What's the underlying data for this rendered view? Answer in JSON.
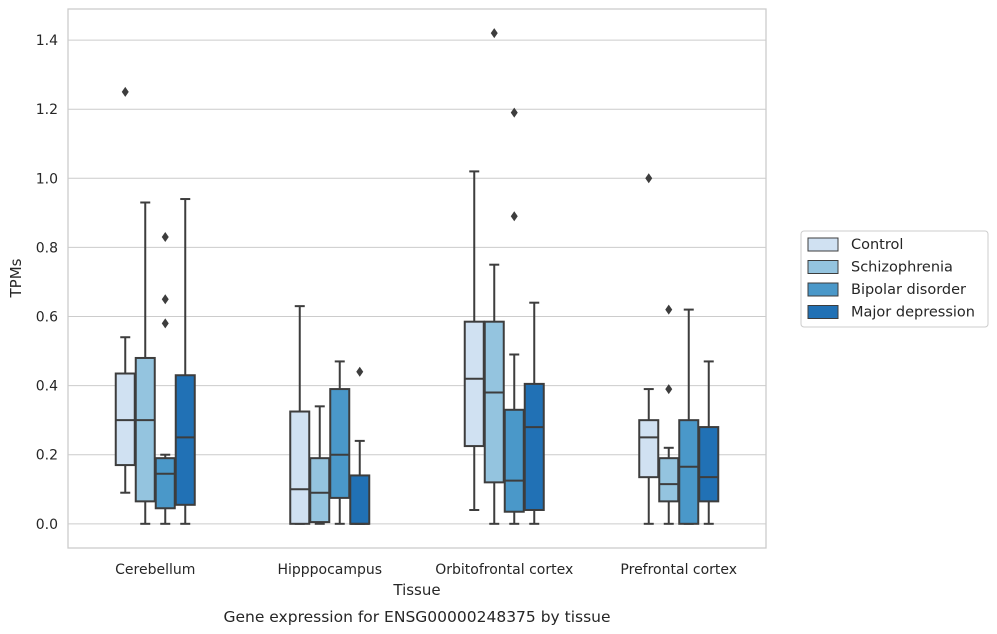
{
  "chart_data": {
    "type": "box",
    "caption": "Gene expression for ENSG00000248375 by tissue",
    "xlabel": "Tissue",
    "ylabel": "TPMs",
    "ylim": [
      -0.07,
      1.49
    ],
    "yticks": [
      "0.0",
      "0.2",
      "0.4",
      "0.6",
      "0.8",
      "1.0",
      "1.2",
      "1.4"
    ],
    "grid": true,
    "legend_position": "right",
    "categories": [
      "Cerebellum",
      "Hipppocampus",
      "Orbitofrontal cortex",
      "Prefrontal cortex"
    ],
    "series": [
      {
        "name": "Control",
        "color": "#d0e1f2",
        "boxes": [
          {
            "whisker_low": 0.09,
            "q1": 0.17,
            "median": 0.3,
            "q3": 0.435,
            "whisker_high": 0.54,
            "outliers": [
              1.25
            ]
          },
          {
            "whisker_low": 0.0,
            "q1": 0.0,
            "median": 0.1,
            "q3": 0.325,
            "whisker_high": 0.63,
            "outliers": []
          },
          {
            "whisker_low": 0.04,
            "q1": 0.225,
            "median": 0.42,
            "q3": 0.585,
            "whisker_high": 1.02,
            "outliers": []
          },
          {
            "whisker_low": 0.0,
            "q1": 0.135,
            "median": 0.25,
            "q3": 0.3,
            "whisker_high": 0.39,
            "outliers": [
              1.0
            ]
          }
        ]
      },
      {
        "name": "Schizophrenia",
        "color": "#94c4df",
        "boxes": [
          {
            "whisker_low": 0.0,
            "q1": 0.065,
            "median": 0.3,
            "q3": 0.48,
            "whisker_high": 0.93,
            "outliers": []
          },
          {
            "whisker_low": 0.0,
            "q1": 0.005,
            "median": 0.09,
            "q3": 0.19,
            "whisker_high": 0.34,
            "outliers": []
          },
          {
            "whisker_low": 0.0,
            "q1": 0.12,
            "median": 0.38,
            "q3": 0.585,
            "whisker_high": 0.75,
            "outliers": [
              1.42
            ]
          },
          {
            "whisker_low": 0.0,
            "q1": 0.065,
            "median": 0.115,
            "q3": 0.19,
            "whisker_high": 0.22,
            "outliers": [
              0.39,
              0.62
            ]
          }
        ]
      },
      {
        "name": "Bipolar disorder",
        "color": "#4a98c9",
        "boxes": [
          {
            "whisker_low": 0.0,
            "q1": 0.045,
            "median": 0.145,
            "q3": 0.19,
            "whisker_high": 0.2,
            "outliers": [
              0.58,
              0.65,
              0.83
            ]
          },
          {
            "whisker_low": 0.0,
            "q1": 0.075,
            "median": 0.2,
            "q3": 0.39,
            "whisker_high": 0.47,
            "outliers": []
          },
          {
            "whisker_low": 0.0,
            "q1": 0.035,
            "median": 0.125,
            "q3": 0.33,
            "whisker_high": 0.49,
            "outliers": [
              0.89,
              1.19
            ]
          },
          {
            "whisker_low": 0.0,
            "q1": 0.0,
            "median": 0.165,
            "q3": 0.3,
            "whisker_high": 0.62,
            "outliers": []
          }
        ]
      },
      {
        "name": "Major depression",
        "color": "#2171b5",
        "boxes": [
          {
            "whisker_low": 0.0,
            "q1": 0.055,
            "median": 0.25,
            "q3": 0.43,
            "whisker_high": 0.94,
            "outliers": []
          },
          {
            "whisker_low": 0.0,
            "q1": 0.0,
            "median": 0.0,
            "q3": 0.14,
            "whisker_high": 0.24,
            "outliers": [
              0.44
            ]
          },
          {
            "whisker_low": 0.0,
            "q1": 0.04,
            "median": 0.28,
            "q3": 0.405,
            "whisker_high": 0.64,
            "outliers": []
          },
          {
            "whisker_low": 0.0,
            "q1": 0.065,
            "median": 0.135,
            "q3": 0.28,
            "whisker_high": 0.47,
            "outliers": []
          }
        ]
      }
    ]
  }
}
